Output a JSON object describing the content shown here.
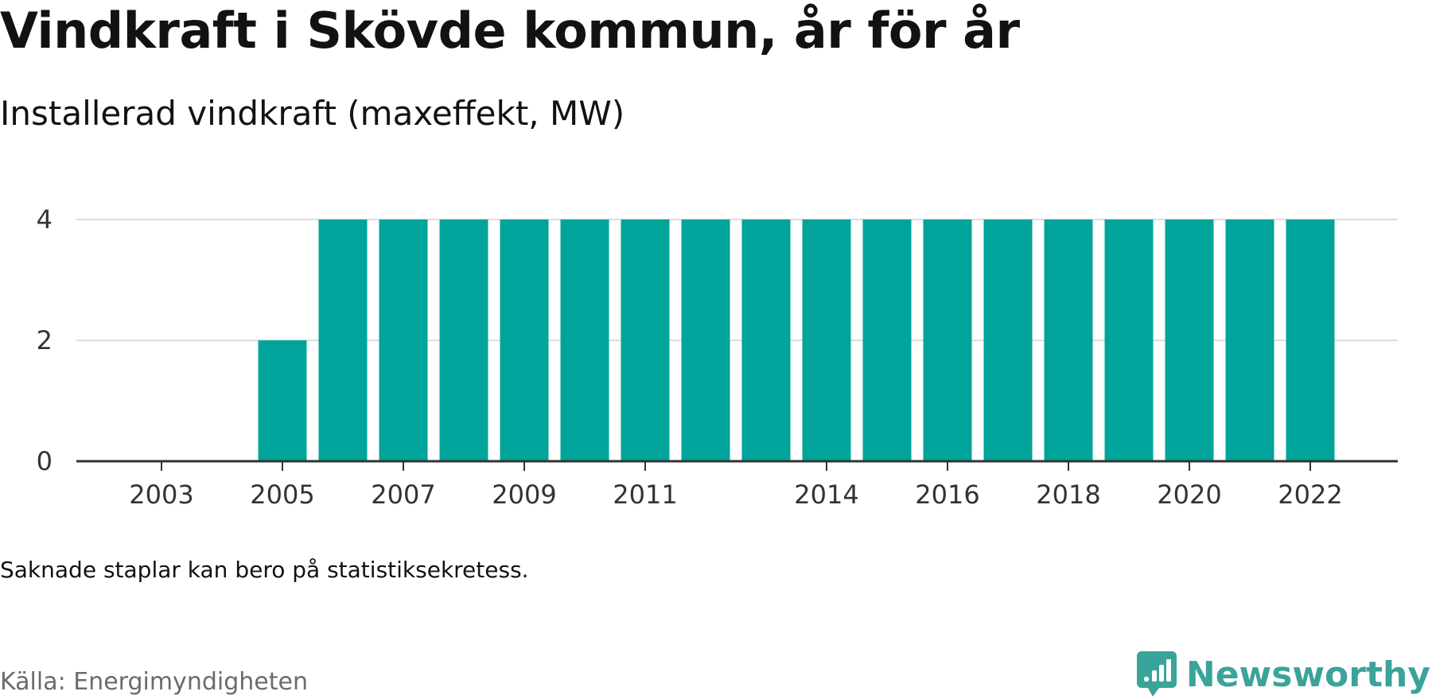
{
  "header": {
    "title": "Vindkraft i Skövde kommun, år för år",
    "subtitle": "Installerad vindkraft (maxeffekt, MW)"
  },
  "footer": {
    "note": "Saknade staplar kan bero på statistiksekretess.",
    "source": "Källa: Energimyndigheten",
    "brand": "Newsworthy",
    "brand_icon": "newsworthy-logo-icon"
  },
  "colors": {
    "bar": "#00a49a",
    "grid": "#dddddd",
    "axis": "#333333",
    "brand": "#3aa39a"
  },
  "chart_data": {
    "type": "bar",
    "title": "Vindkraft i Skövde kommun, år för år",
    "subtitle": "Installerad vindkraft (maxeffekt, MW)",
    "xlabel": "",
    "ylabel": "",
    "categories": [
      2002,
      2003,
      2004,
      2005,
      2006,
      2007,
      2008,
      2009,
      2010,
      2011,
      2012,
      2013,
      2014,
      2015,
      2016,
      2017,
      2018,
      2019,
      2020,
      2021,
      2022
    ],
    "values": [
      null,
      null,
      null,
      2,
      4,
      4,
      4,
      4,
      4,
      4,
      4,
      4,
      4,
      4,
      4,
      4,
      4,
      4,
      4,
      4,
      4
    ],
    "x_tick_labels": [
      "2003",
      "2005",
      "2007",
      "2009",
      "2011",
      "2014",
      "2016",
      "2018",
      "2020",
      "2022"
    ],
    "y_ticks": [
      0,
      2,
      4
    ],
    "ylim": [
      0,
      4
    ],
    "grid": true,
    "legend": "none"
  }
}
